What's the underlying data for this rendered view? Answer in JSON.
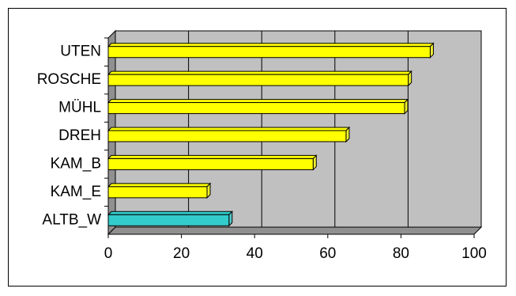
{
  "chart_data": {
    "type": "bar",
    "orientation": "horizontal",
    "bar_style": "3d",
    "categories": [
      "UTEN",
      "ROSCHE",
      "MÜHL",
      "DREH",
      "KAM_B",
      "KAM_E",
      "ALTB_W"
    ],
    "values": [
      88,
      82,
      81,
      65,
      56,
      27,
      33
    ],
    "colors": [
      "#ffff00",
      "#ffff00",
      "#ffff00",
      "#ffff00",
      "#ffff00",
      "#ffff00",
      "#33cccc"
    ],
    "xlim": [
      0,
      100
    ],
    "xticks": [
      0,
      20,
      40,
      60,
      80,
      100
    ],
    "grid": true,
    "wall_color": "#c0c0c0"
  }
}
